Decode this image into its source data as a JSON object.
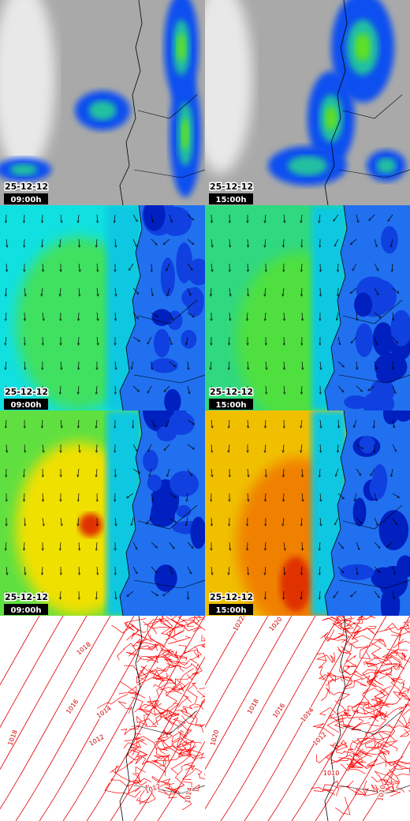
{
  "panels": [
    {
      "date": "25-12-12",
      "time": "09:00h"
    },
    {
      "date": "25-12-12",
      "time": "15:00h"
    },
    {
      "date": "25-12-12",
      "time": "09:00h"
    },
    {
      "date": "25-12-12",
      "time": "15:00h"
    },
    {
      "date": "25-12-12",
      "time": "09:00h"
    },
    {
      "date": "25-12-12",
      "time": "15:00h"
    }
  ],
  "isobars_left": [
    "1018",
    "1016",
    "1014",
    "1012",
    "1018",
    "1012",
    "1014"
  ],
  "isobars_right": [
    "1022",
    "1020",
    "1018",
    "1016",
    "1014",
    "1012",
    "1020",
    "1010",
    "1010"
  ]
}
